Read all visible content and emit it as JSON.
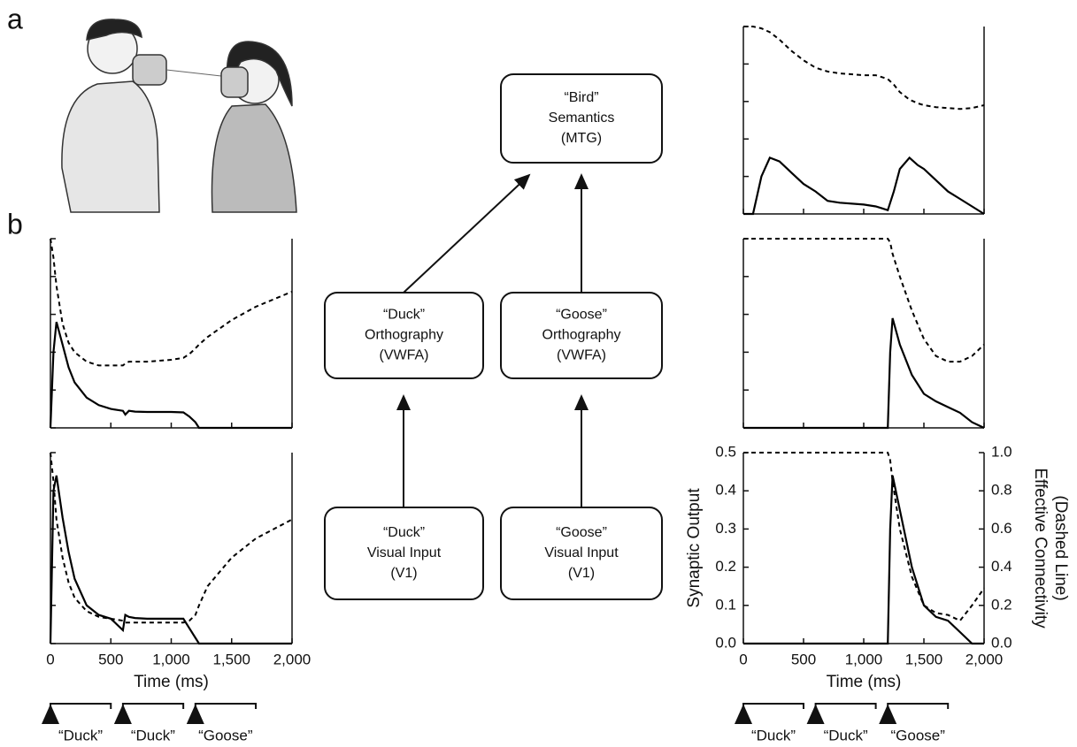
{
  "panel_labels": [
    "a",
    "b"
  ],
  "diagram": {
    "nodes": [
      {
        "lines": [
          "“Bird”",
          "Semantics",
          "(MTG)"
        ]
      },
      {
        "lines": [
          "“Duck”",
          "Orthography",
          "(VWFA)"
        ]
      },
      {
        "lines": [
          "“Goose”",
          "Orthography",
          "(VWFA)"
        ]
      },
      {
        "lines": [
          "“Duck”",
          "Visual Input",
          "(V1)"
        ]
      },
      {
        "lines": [
          "“Goose”",
          "Visual Input",
          "(V1)"
        ]
      }
    ]
  },
  "chart_data": [
    {
      "type": "line",
      "tick_labels": false,
      "x": [
        0,
        25,
        50,
        100,
        150,
        200,
        300,
        400,
        500,
        600,
        620,
        650,
        700,
        800,
        1000,
        1100,
        1150,
        1200,
        1230,
        1300,
        1500,
        1700,
        2000
      ],
      "series": [
        {
          "style": "solid",
          "color": "#000000",
          "values": [
            0,
            0.2,
            0.28,
            0.22,
            0.16,
            0.12,
            0.08,
            0.06,
            0.05,
            0.045,
            0.035,
            0.045,
            0.043,
            0.042,
            0.042,
            0.041,
            0.03,
            0.015,
            0,
            0,
            0,
            0,
            0
          ]
        },
        {
          "style": "dashed",
          "color": "#000000",
          "axis": "y2",
          "values": [
            1.0,
            0.9,
            0.75,
            0.55,
            0.45,
            0.4,
            0.35,
            0.33,
            0.33,
            0.33,
            0.34,
            0.35,
            0.35,
            0.35,
            0.36,
            0.37,
            0.39,
            0.42,
            0.44,
            0.48,
            0.57,
            0.64,
            0.72
          ]
        }
      ],
      "xlim": [
        0,
        2000
      ],
      "ylim": [
        0,
        0.5
      ],
      "y2lim": [
        0,
        1
      ],
      "xticks": [
        0,
        500,
        1000,
        1500,
        2000
      ],
      "yticks": [
        0,
        0.1,
        0.2,
        0.3,
        0.4,
        0.5
      ]
    },
    {
      "type": "line",
      "tick_labels": true,
      "x": [
        0,
        25,
        50,
        100,
        150,
        200,
        300,
        400,
        500,
        600,
        620,
        650,
        700,
        800,
        1000,
        1100,
        1150,
        1200,
        1230,
        1300,
        1500,
        1700,
        2000
      ],
      "series": [
        {
          "style": "solid",
          "color": "#000000",
          "values": [
            0,
            0.4,
            0.44,
            0.33,
            0.24,
            0.17,
            0.1,
            0.075,
            0.065,
            0.035,
            0.075,
            0.07,
            0.067,
            0.065,
            0.065,
            0.065,
            0.04,
            0.015,
            0,
            0,
            0,
            0,
            0
          ]
        },
        {
          "style": "dashed",
          "color": "#000000",
          "axis": "y2",
          "values": [
            1.0,
            0.85,
            0.65,
            0.45,
            0.32,
            0.24,
            0.17,
            0.14,
            0.13,
            0.12,
            0.11,
            0.11,
            0.11,
            0.11,
            0.11,
            0.11,
            0.12,
            0.15,
            0.2,
            0.3,
            0.45,
            0.55,
            0.65
          ]
        }
      ],
      "xlim": [
        0,
        2000
      ],
      "ylim": [
        0,
        0.5
      ],
      "y2lim": [
        0,
        1
      ],
      "xticks": [
        0,
        500,
        {
          "value": 1000,
          "label": "1,000"
        },
        {
          "value": 1500,
          "label": "1,500"
        },
        {
          "value": 2000,
          "label": "2,000"
        }
      ],
      "yticks": [
        0,
        0.1,
        0.2,
        0.3,
        0.4,
        0.5
      ],
      "xlabel": "Time (ms)",
      "stimuli": [
        {
          "label": "“Duck”",
          "start": 0,
          "end": 500
        },
        {
          "label": "“Duck”",
          "start": 600,
          "end": 1100
        },
        {
          "label": "“Goose”",
          "start": 1200,
          "end": 1700
        }
      ]
    },
    {
      "type": "line",
      "tick_labels": false,
      "x": [
        0,
        80,
        150,
        220,
        300,
        400,
        500,
        600,
        700,
        800,
        1000,
        1100,
        1150,
        1200,
        1250,
        1300,
        1380,
        1450,
        1500,
        1600,
        1700,
        1800,
        1900,
        2000
      ],
      "series": [
        {
          "style": "solid",
          "color": "#000000",
          "values": [
            0,
            0,
            0.1,
            0.15,
            0.14,
            0.11,
            0.08,
            0.06,
            0.035,
            0.03,
            0.025,
            0.02,
            0.015,
            0.01,
            0.06,
            0.12,
            0.15,
            0.13,
            0.12,
            0.09,
            0.06,
            0.04,
            0.02,
            0
          ]
        },
        {
          "style": "dashed",
          "color": "#000000",
          "axis": "y2",
          "values": [
            1.0,
            1.0,
            0.99,
            0.97,
            0.93,
            0.87,
            0.82,
            0.78,
            0.76,
            0.75,
            0.74,
            0.74,
            0.73,
            0.72,
            0.69,
            0.65,
            0.61,
            0.59,
            0.58,
            0.57,
            0.565,
            0.56,
            0.565,
            0.58
          ]
        }
      ],
      "xlim": [
        0,
        2000
      ],
      "ylim": [
        0,
        0.5
      ],
      "y2lim": [
        0,
        1
      ],
      "xticks": [
        0,
        500,
        1000,
        1500,
        2000
      ],
      "yticks": [
        0,
        0.1,
        0.2,
        0.3,
        0.4,
        0.5
      ]
    },
    {
      "type": "line",
      "tick_labels": false,
      "x": [
        0,
        1200,
        1220,
        1240,
        1300,
        1400,
        1500,
        1600,
        1700,
        1800,
        1900,
        2000
      ],
      "series": [
        {
          "style": "solid",
          "color": "#000000",
          "values": [
            0,
            0,
            0.2,
            0.29,
            0.22,
            0.14,
            0.09,
            0.07,
            0.055,
            0.04,
            0.015,
            0
          ]
        },
        {
          "style": "dashed",
          "color": "#000000",
          "axis": "y2",
          "values": [
            1,
            1,
            0.98,
            0.92,
            0.8,
            0.62,
            0.47,
            0.38,
            0.35,
            0.35,
            0.38,
            0.44
          ]
        }
      ],
      "xlim": [
        0,
        2000
      ],
      "ylim": [
        0,
        0.5
      ],
      "y2lim": [
        0,
        1
      ],
      "xticks": [
        0,
        500,
        1000,
        1500,
        2000
      ],
      "yticks": [
        0,
        0.1,
        0.2,
        0.3,
        0.4,
        0.5
      ]
    },
    {
      "type": "line",
      "tick_labels": true,
      "x": [
        0,
        1200,
        1220,
        1240,
        1300,
        1400,
        1500,
        1600,
        1700,
        1800,
        1900,
        2000
      ],
      "series": [
        {
          "style": "solid",
          "color": "#000000",
          "values": [
            0,
            0,
            0.3,
            0.44,
            0.35,
            0.2,
            0.1,
            0.07,
            0.06,
            0.03,
            0,
            0
          ]
        },
        {
          "style": "dashed",
          "color": "#000000",
          "axis": "y2",
          "values": [
            1,
            1,
            0.96,
            0.85,
            0.6,
            0.35,
            0.2,
            0.16,
            0.15,
            0.12,
            0.2,
            0.29
          ]
        }
      ],
      "xlim": [
        0,
        2000
      ],
      "ylim": [
        0,
        0.5
      ],
      "y2lim": [
        0,
        1
      ],
      "xticks": [
        0,
        500,
        {
          "value": 1000,
          "label": "1,000"
        },
        {
          "value": 1500,
          "label": "1,500"
        },
        {
          "value": 2000,
          "label": "2,000"
        }
      ],
      "yticks": [
        {
          "value": 0,
          "label": "0.0"
        },
        0.1,
        0.2,
        0.3,
        0.4,
        0.5
      ],
      "y2ticks": [
        {
          "value": 0,
          "label": "0.0"
        },
        0.2,
        0.4,
        0.6,
        0.8,
        {
          "value": 1,
          "label": "1.0"
        }
      ],
      "xlabel": "Time (ms)",
      "ylabel": "Synaptic Output",
      "y2label": [
        "Effective Connectivity",
        "(Dashed Line)"
      ],
      "stimuli": [
        {
          "label": "“Duck”",
          "start": 0,
          "end": 500
        },
        {
          "label": "“Duck”",
          "start": 600,
          "end": 1100
        },
        {
          "label": "“Goose”",
          "start": 1200,
          "end": 1700
        }
      ]
    }
  ]
}
